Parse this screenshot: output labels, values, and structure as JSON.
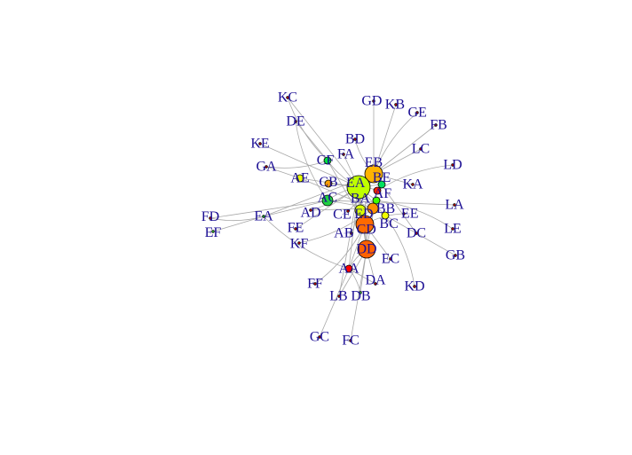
{
  "nodes": [
    {
      "id": "KC",
      "color": "#ff0000",
      "size": "dot"
    },
    {
      "id": "DE",
      "color": "#ff0000",
      "size": "dot"
    },
    {
      "id": "KE",
      "color": "#ff0000",
      "size": "dot"
    },
    {
      "id": "GA",
      "color": "#ff0000",
      "size": "dot"
    },
    {
      "id": "AE",
      "color": "#e8ff00",
      "size": "small"
    },
    {
      "id": "CF",
      "color": "#00e040",
      "size": "small"
    },
    {
      "id": "FA",
      "color": "#ff0000",
      "size": "dot"
    },
    {
      "id": "BD",
      "color": "#ff0000",
      "size": "dot"
    },
    {
      "id": "GD",
      "color": "#ff0000",
      "size": "dot"
    },
    {
      "id": "KB",
      "color": "#ff0000",
      "size": "dot"
    },
    {
      "id": "GE",
      "color": "#ff0000",
      "size": "dot"
    },
    {
      "id": "FB",
      "color": "#ff0000",
      "size": "dot"
    },
    {
      "id": "LC",
      "color": "#ff0000",
      "size": "dot"
    },
    {
      "id": "LD",
      "color": "#ff0000",
      "size": "dot"
    },
    {
      "id": "KA",
      "color": "#ff0000",
      "size": "dot"
    },
    {
      "id": "LA",
      "color": "#ff0000",
      "size": "dot"
    },
    {
      "id": "LE",
      "color": "#ff0000",
      "size": "dot"
    },
    {
      "id": "GB",
      "color": "#ff0000",
      "size": "dot"
    },
    {
      "id": "DC",
      "color": "#ff0000",
      "size": "dot"
    },
    {
      "id": "EE",
      "color": "#ff0000",
      "size": "dot"
    },
    {
      "id": "BC",
      "color": "#f0ff00",
      "size": "small"
    },
    {
      "id": "EB",
      "color": "#ffb300",
      "size": "large"
    },
    {
      "id": "EA",
      "color": "#bfff00",
      "size": "huge"
    },
    {
      "id": "BE",
      "color": "#00e060",
      "size": "small"
    },
    {
      "id": "AF",
      "color": "#ff2000",
      "size": "small"
    },
    {
      "id": "BB",
      "color": "#40ff00",
      "size": "small"
    },
    {
      "id": "BA",
      "color": "#ff9000",
      "size": "medium"
    },
    {
      "id": "ED",
      "color": "#d8ff00",
      "size": "medium"
    },
    {
      "id": "CE",
      "color": "#ff0000",
      "size": "dot"
    },
    {
      "id": "CB",
      "color": "#ffa000",
      "size": "small"
    },
    {
      "id": "AC",
      "color": "#20d040",
      "size": "medium"
    },
    {
      "id": "AD",
      "color": "#ff0000",
      "size": "dot"
    },
    {
      "id": "CD",
      "color": "#ff6a00",
      "size": "large"
    },
    {
      "id": "DD",
      "color": "#ff6200",
      "size": "large"
    },
    {
      "id": "AB",
      "color": "#ff0000",
      "size": "dot"
    },
    {
      "id": "AA",
      "color": "#ff0000",
      "size": "small"
    },
    {
      "id": "FE",
      "color": "#ff0000",
      "size": "dot"
    },
    {
      "id": "KF",
      "color": "#ff0000",
      "size": "dot"
    },
    {
      "id": "EA2",
      "label": "EA",
      "color": "#00e040",
      "size": "dot"
    },
    {
      "id": "FD",
      "color": "#ff0000",
      "size": "dot"
    },
    {
      "id": "EF",
      "color": "#40ff40",
      "size": "dot"
    },
    {
      "id": "FF",
      "color": "#ff0000",
      "size": "dot"
    },
    {
      "id": "LB",
      "color": "#ff0000",
      "size": "dot"
    },
    {
      "id": "DB",
      "color": "#40ff40",
      "size": "dot"
    },
    {
      "id": "DA",
      "color": "#ff0000",
      "size": "dot"
    },
    {
      "id": "EC",
      "color": "#ff0000",
      "size": "dot"
    },
    {
      "id": "KD",
      "color": "#ff0000",
      "size": "dot"
    },
    {
      "id": "GC",
      "color": "#ff0000",
      "size": "dot"
    },
    {
      "id": "FC",
      "color": "#ff0000",
      "size": "dot"
    }
  ],
  "edges": [
    [
      "KC",
      "CF"
    ],
    [
      "KC",
      "EA"
    ],
    [
      "DE",
      "CF"
    ],
    [
      "DE",
      "AC"
    ],
    [
      "KE",
      "EA"
    ],
    [
      "GA",
      "AE"
    ],
    [
      "GA",
      "CF"
    ],
    [
      "AE",
      "EA"
    ],
    [
      "AE",
      "BA"
    ],
    [
      "CF",
      "EA"
    ],
    [
      "CF",
      "CD"
    ],
    [
      "FA",
      "EA"
    ],
    [
      "BD",
      "EB"
    ],
    [
      "GD",
      "EB"
    ],
    [
      "KB",
      "EB"
    ],
    [
      "GE",
      "EB"
    ],
    [
      "FB",
      "EB"
    ],
    [
      "LC",
      "EB"
    ],
    [
      "LD",
      "AF"
    ],
    [
      "KA",
      "EB"
    ],
    [
      "LA",
      "AC"
    ],
    [
      "LE",
      "BB"
    ],
    [
      "GB",
      "BA"
    ],
    [
      "DC",
      "EB"
    ],
    [
      "EE",
      "CD"
    ],
    [
      "BC",
      "EA"
    ],
    [
      "EB",
      "EA"
    ],
    [
      "EB",
      "CD"
    ],
    [
      "EA",
      "CD"
    ],
    [
      "EA",
      "DD"
    ],
    [
      "EA",
      "AC"
    ],
    [
      "EA",
      "BA"
    ],
    [
      "BE",
      "EA"
    ],
    [
      "AF",
      "EA"
    ],
    [
      "BB",
      "EA"
    ],
    [
      "ED",
      "EA"
    ],
    [
      "CE",
      "EB"
    ],
    [
      "CB",
      "EA"
    ],
    [
      "AC",
      "BA"
    ],
    [
      "AD",
      "EB"
    ],
    [
      "CD",
      "DD"
    ],
    [
      "CD",
      "AA"
    ],
    [
      "DD",
      "AA"
    ],
    [
      "DD",
      "DA"
    ],
    [
      "DD",
      "DB"
    ],
    [
      "AB",
      "EA"
    ],
    [
      "AA",
      "EA"
    ],
    [
      "FE",
      "EA"
    ],
    [
      "KF",
      "BA"
    ],
    [
      "EA2",
      "AC"
    ],
    [
      "EA2",
      "EB"
    ],
    [
      "FD",
      "EA2"
    ],
    [
      "EF",
      "EA2"
    ],
    [
      "FD",
      "AC"
    ],
    [
      "FF",
      "CD"
    ],
    [
      "LB",
      "DD"
    ],
    [
      "LB",
      "EA"
    ],
    [
      "DB",
      "AA"
    ],
    [
      "DA",
      "AA"
    ],
    [
      "EC",
      "CD"
    ],
    [
      "KD",
      "BC"
    ],
    [
      "GC",
      "AA"
    ],
    [
      "FC",
      "DD"
    ],
    [
      "EA2",
      "AA"
    ],
    [
      "AD",
      "BA"
    ],
    [
      "ED",
      "DD"
    ],
    [
      "BB",
      "DD"
    ],
    [
      "AF",
      "DD"
    ]
  ]
}
